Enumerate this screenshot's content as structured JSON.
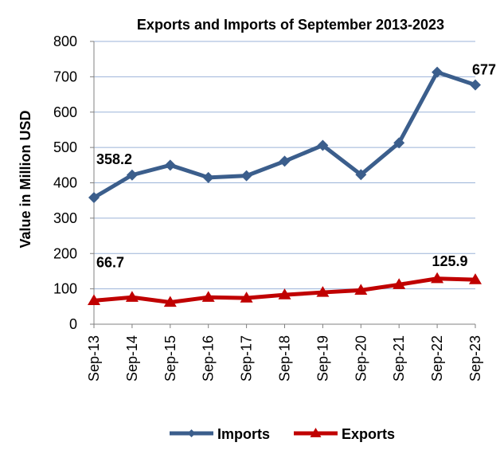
{
  "chart_data": {
    "type": "line",
    "title": "Exports and Imports of September 2013-2023",
    "ylabel": "Value in  Million  USD",
    "xlabel": "",
    "ylim": [
      0,
      800
    ],
    "yticks": [
      0,
      100,
      200,
      300,
      400,
      500,
      600,
      700,
      800
    ],
    "grid": true,
    "legend_position": "bottom",
    "categories": [
      "Sep-13",
      "Sep-14",
      "Sep-15",
      "Sep-16",
      "Sep-17",
      "Sep-18",
      "Sep-19",
      "Sep-20",
      "Sep-21",
      "Sep-22",
      "Sep-23"
    ],
    "series": [
      {
        "name": "Imports",
        "color": "#3b5e8c",
        "marker": "diamond",
        "values": [
          358.2,
          422,
          450,
          415,
          420,
          461,
          506,
          423,
          513,
          713,
          677
        ],
        "data_labels": [
          {
            "index": 0,
            "text": "358.2"
          },
          {
            "index": 10,
            "text": "677"
          }
        ]
      },
      {
        "name": "Exports",
        "color": "#c00000",
        "marker": "triangle",
        "values": [
          66.7,
          76,
          62,
          76,
          74,
          83,
          90,
          96,
          112,
          129,
          125.9
        ],
        "data_labels": [
          {
            "index": 0,
            "text": "66.7"
          },
          {
            "index": 10,
            "text": "125.9"
          }
        ]
      }
    ]
  }
}
